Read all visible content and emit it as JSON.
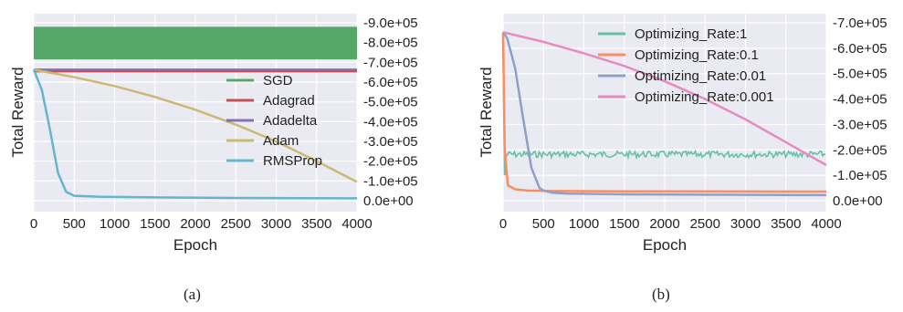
{
  "colors": {
    "plot_bg": "#eaeaf2",
    "grid": "#ffffff",
    "SGD": "#55a868",
    "Adagrad": "#c44e52",
    "Adadelta": "#8172b2",
    "Adam": "#ccb974",
    "RMSProp": "#64b5cd",
    "rate_1": "#66c2a5",
    "rate_0_1": "#fc8d62",
    "rate_0_01": "#8da0cb",
    "rate_0_001": "#e78ac3"
  },
  "captions": {
    "a": "(a)",
    "b": "(b)"
  },
  "chart_data": [
    {
      "id": "a",
      "type": "line",
      "xlabel": "Epoch",
      "ylabel": "Total Reward",
      "xlim": [
        0,
        4000
      ],
      "x_ticks": [
        0,
        500,
        1000,
        1500,
        2000,
        2500,
        3000,
        3500,
        4000
      ],
      "ylim": [
        0,
        900000
      ],
      "y_ticks": [
        0,
        100000,
        200000,
        300000,
        400000,
        500000,
        600000,
        700000,
        800000,
        900000
      ],
      "y_tick_labels": [
        "0.0e+00",
        "-1.0e+05",
        "-2.0e+05",
        "-3.0e+05",
        "-4.0e+05",
        "-5.0e+05",
        "-6.0e+05",
        "-7.0e+05",
        "-8.0e+05",
        "-9.0e+05"
      ],
      "y_axis_side": "right",
      "grid": true,
      "legend_position": "right",
      "series": [
        {
          "name": "SGD",
          "color_key": "SGD",
          "band": [
            715000,
            880000
          ]
        },
        {
          "name": "Adagrad",
          "color_key": "Adagrad",
          "x": [
            0,
            4000
          ],
          "y": [
            655000,
            655000
          ]
        },
        {
          "name": "Adadelta",
          "color_key": "Adadelta",
          "x": [
            0,
            4000
          ],
          "y": [
            663000,
            663000
          ]
        },
        {
          "name": "Adam",
          "color_key": "Adam",
          "x": [
            0,
            500,
            1000,
            1500,
            2000,
            2500,
            3000,
            3500,
            4000
          ],
          "y": [
            663000,
            625000,
            580000,
            525000,
            460000,
            385000,
            300000,
            200000,
            95000
          ]
        },
        {
          "name": "RMSProp",
          "color_key": "RMSProp",
          "x": [
            0,
            100,
            200,
            300,
            400,
            500,
            800,
            1500,
            2500,
            4000
          ],
          "y": [
            663000,
            560000,
            360000,
            140000,
            45000,
            25000,
            20000,
            17000,
            14000,
            12000
          ]
        }
      ]
    },
    {
      "id": "b",
      "type": "line",
      "xlabel": "Epoch",
      "ylabel": "Total Reward",
      "xlim": [
        0,
        4000
      ],
      "x_ticks": [
        0,
        500,
        1000,
        1500,
        2000,
        2500,
        3000,
        3500,
        4000
      ],
      "ylim": [
        0,
        700000
      ],
      "y_ticks": [
        0,
        100000,
        200000,
        300000,
        400000,
        500000,
        600000,
        700000
      ],
      "y_tick_labels": [
        "0.0e+00",
        "-1.0e+05",
        "-2.0e+05",
        "-3.0e+05",
        "-4.0e+05",
        "-5.0e+05",
        "-6.0e+05",
        "-7.0e+05"
      ],
      "y_axis_side": "right",
      "grid": true,
      "legend_position": "upper-right",
      "series": [
        {
          "name": "Optimizing_Rate:1",
          "color_key": "rate_1",
          "noise_band": [
            170000,
            195000
          ],
          "x": [
            0,
            20,
            40,
            4000
          ],
          "y": [
            663000,
            100000,
            183000,
            183000
          ]
        },
        {
          "name": "Optimizing_Rate:0.1",
          "color_key": "rate_0_1",
          "x": [
            0,
            20,
            60,
            150,
            300,
            600,
            1500,
            4000
          ],
          "y": [
            663000,
            200000,
            60000,
            45000,
            40000,
            38000,
            37000,
            36000
          ]
        },
        {
          "name": "Optimizing_Rate:0.01",
          "color_key": "rate_0_01",
          "x": [
            0,
            50,
            150,
            250,
            350,
            450,
            500,
            600,
            800,
            1500,
            4000
          ],
          "y": [
            663000,
            640000,
            520000,
            320000,
            130000,
            50000,
            40000,
            32000,
            28000,
            25000,
            22000
          ]
        },
        {
          "name": "Optimizing_Rate:0.001",
          "color_key": "rate_0_001",
          "x": [
            0,
            500,
            1000,
            1500,
            2000,
            2500,
            3000,
            3500,
            4000
          ],
          "y": [
            663000,
            625000,
            580000,
            530000,
            470000,
            400000,
            320000,
            230000,
            140000
          ]
        }
      ]
    }
  ]
}
